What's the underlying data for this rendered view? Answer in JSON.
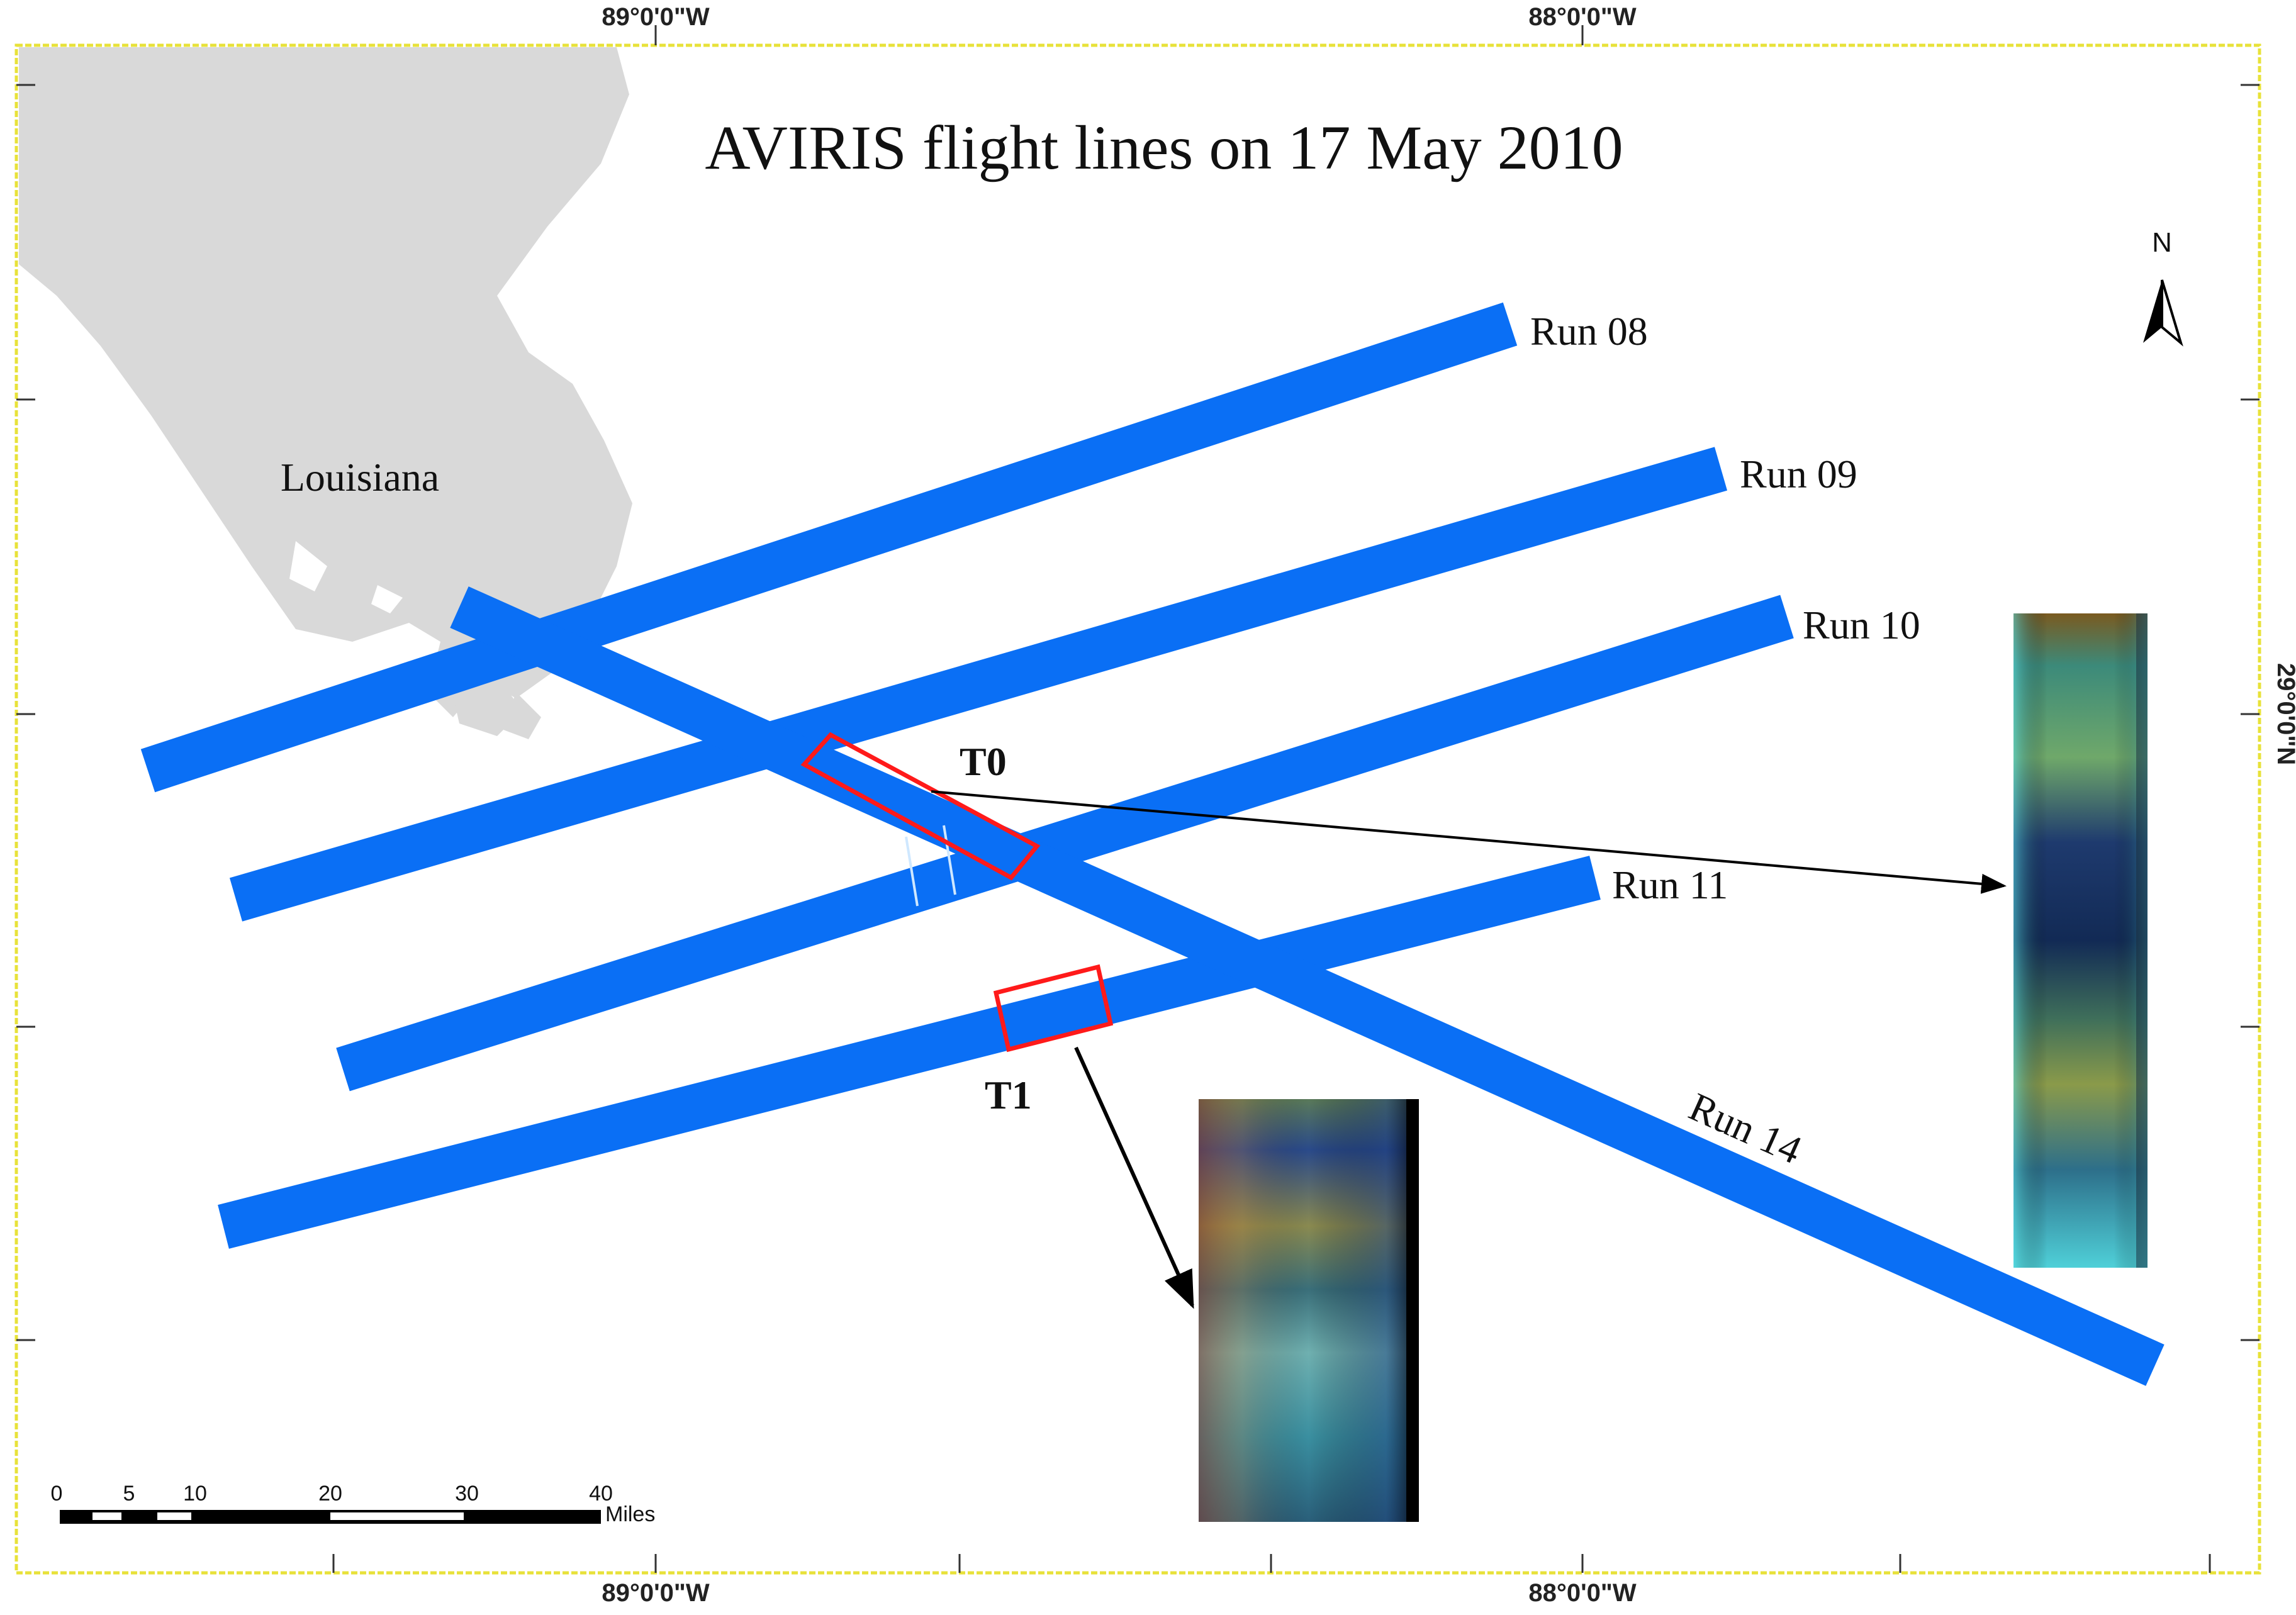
{
  "map": {
    "title": "AVIRIS flight lines on 17 May 2010",
    "region_label": "Louisiana",
    "north_label": "N",
    "colors": {
      "background": "#ffffff",
      "land": "#d9d9d9",
      "flight_line": "#0a6ff5",
      "frame": "#e8e23a",
      "highlight_box": "#ff1a1a",
      "arrow": "#000000",
      "text": "#111111"
    },
    "coordinates": {
      "top_left": "89°0'0\"W",
      "top_right": "88°0'0\"W",
      "bottom_left": "89°0'0\"W",
      "bottom_right": "88°0'0\"W",
      "right_side": "29°0'0\"N"
    },
    "flight_lines": [
      {
        "id": "run08",
        "label": "Run 08"
      },
      {
        "id": "run09",
        "label": "Run 09"
      },
      {
        "id": "run10",
        "label": "Run 10"
      },
      {
        "id": "run11",
        "label": "Run 11"
      },
      {
        "id": "run14",
        "label": "Run 14"
      }
    ],
    "subsets": [
      {
        "id": "t0",
        "label": "T0"
      },
      {
        "id": "t1",
        "label": "T1"
      }
    ],
    "scale_bar": {
      "ticks": [
        "0",
        "5",
        "10",
        "20",
        "30",
        "40"
      ],
      "unit": "Miles"
    }
  }
}
